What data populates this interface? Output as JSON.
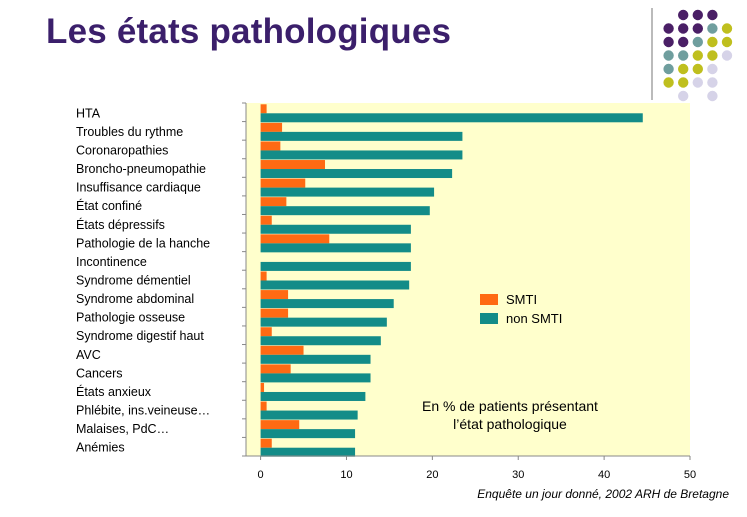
{
  "slide": {
    "title": "Les états pathologiques",
    "source": "Enquête un jour donné, 2002 ARH de Bretagne",
    "colors": {
      "title": "#3b1f6b",
      "dot_purple": "#4a1f66",
      "dot_teal": "#6f9e9e",
      "dot_yellow": "#bfbf1e",
      "dot_lilac": "#d6d3e8"
    }
  },
  "chart_data": {
    "type": "bar",
    "orientation": "horizontal",
    "categories": [
      "HTA",
      "Troubles du rythme",
      "Coronaropathies",
      "Broncho-pneumopathie",
      "Insuffisance cardiaque",
      "État confiné",
      "États dépressifs",
      "Pathologie de la hanche",
      "Incontinence",
      "Syndrome démentiel",
      "Syndrome abdominal",
      "Pathologie osseuse",
      "Syndrome digestif haut",
      "AVC",
      "Cancers",
      "États anxieux",
      "Phlébite, ins.veineuse…",
      "Malaises, PdC…",
      "Anémies"
    ],
    "series": [
      {
        "name": "SMTI",
        "color": "#ff6a13",
        "values": [
          0.7,
          2.5,
          2.3,
          7.5,
          5.2,
          3.0,
          1.3,
          8.0,
          0.0,
          0.7,
          3.2,
          3.2,
          1.3,
          5.0,
          3.5,
          0.4,
          0.7,
          4.5,
          1.3
        ]
      },
      {
        "name": "non SMTI",
        "color": "#138c88",
        "values": [
          44.5,
          23.5,
          23.5,
          22.3,
          20.2,
          19.7,
          17.5,
          17.5,
          17.5,
          17.3,
          15.5,
          14.7,
          14.0,
          12.8,
          12.8,
          12.2,
          11.3,
          11.0,
          11.0
        ]
      }
    ],
    "xlim": [
      -1.7,
      50
    ],
    "xticks": [
      0,
      10,
      20,
      30,
      40,
      50
    ],
    "annotation": [
      "En % de patients présentant",
      "l’état pathologique"
    ],
    "legend_position": "center-right",
    "plot_background": "#ffffcc"
  }
}
